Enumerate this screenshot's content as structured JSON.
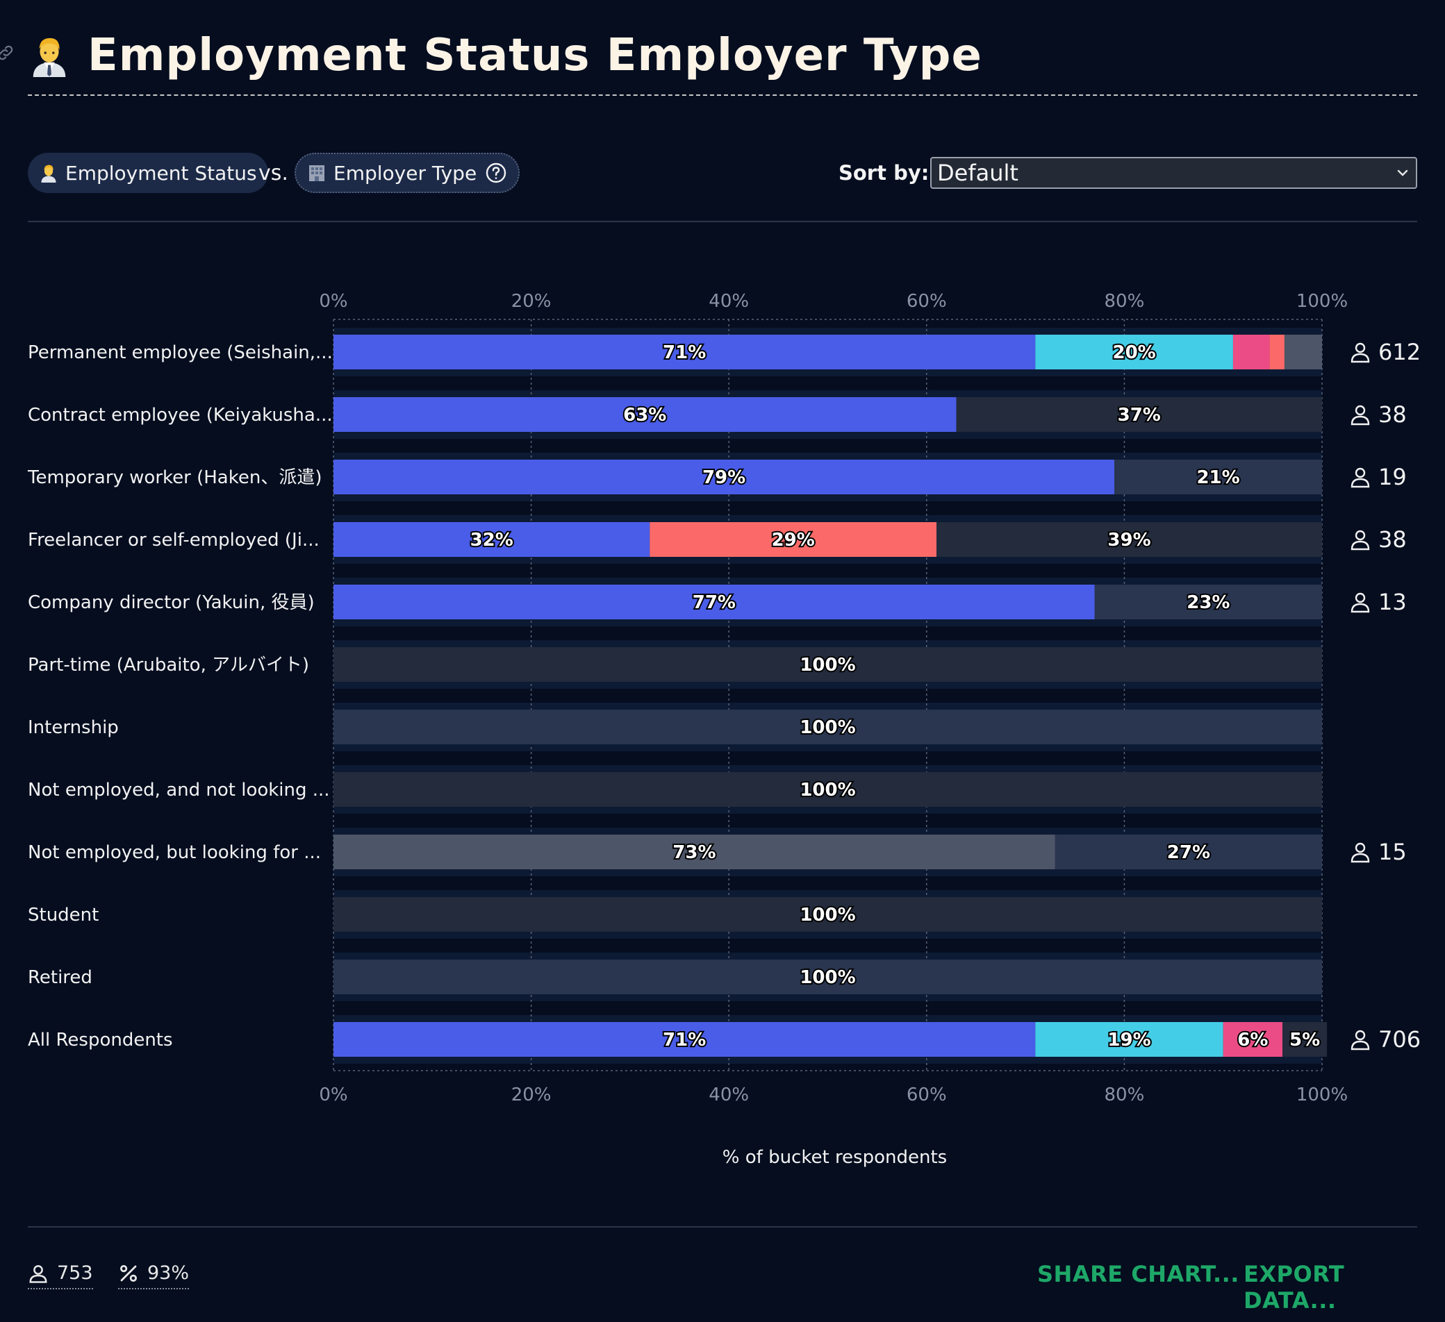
{
  "title": "Employment Status Employer Type",
  "controls": {
    "question1": "Employment Status",
    "vs": "vs.",
    "question2": "Employer Type",
    "sort_label": "Sort by:",
    "sort_value": "Default"
  },
  "footer": {
    "respondents": "753",
    "percent": "93%",
    "share": "SHARE CHART...",
    "export": "EXPORT DATA..."
  },
  "colors": {
    "background": "#050d1f",
    "blue": "#4a5de8",
    "cyan": "#44cde6",
    "pink": "#eb4c85",
    "coral": "#fb6a68",
    "gray": "#4d5568",
    "dark": "#232b3c",
    "darker": "#2a3650",
    "green": "#1ea868"
  },
  "chart_data": {
    "type": "bar",
    "orientation": "horizontal",
    "stacked": true,
    "xlabel": "% of bucket respondents",
    "xlim": [
      0,
      100
    ],
    "xticks": [
      "0%",
      "20%",
      "40%",
      "60%",
      "80%",
      "100%"
    ],
    "grid": true,
    "categories": [
      "Permanent employee (Seishain,...",
      "Contract employee (Keiyakusha...",
      "Temporary worker (Haken、派遣)",
      "Freelancer or self-employed (Ji...",
      "Company director (Yakuin, 役員)",
      "Part-time (Arubaito, アルバイト)",
      "Internship",
      "Not employed, and not looking ...",
      "Not employed, but looking for ...",
      "Student",
      "Retired",
      "All Respondents"
    ],
    "rows": [
      {
        "count": "612",
        "segments": [
          {
            "value": 71,
            "label": "71%",
            "color": "#4a5de8"
          },
          {
            "value": 20,
            "label": "20%",
            "color": "#44cde6"
          },
          {
            "value": 3.7,
            "label": "",
            "color": "#eb4c85"
          },
          {
            "value": 1.5,
            "label": "",
            "color": "#fb6a68"
          },
          {
            "value": 3.8,
            "label": "",
            "color": "#4d5568"
          }
        ]
      },
      {
        "count": "38",
        "segments": [
          {
            "value": 63,
            "label": "63%",
            "color": "#4a5de8"
          },
          {
            "value": 37,
            "label": "37%",
            "color": "#232b3c"
          }
        ]
      },
      {
        "count": "19",
        "segments": [
          {
            "value": 79,
            "label": "79%",
            "color": "#4a5de8"
          },
          {
            "value": 21,
            "label": "21%",
            "color": "#2a3650"
          }
        ]
      },
      {
        "count": "38",
        "segments": [
          {
            "value": 32,
            "label": "32%",
            "color": "#4a5de8"
          },
          {
            "value": 29,
            "label": "29%",
            "color": "#fb6a68"
          },
          {
            "value": 39,
            "label": "39%",
            "color": "#232b3c"
          }
        ]
      },
      {
        "count": "13",
        "segments": [
          {
            "value": 77,
            "label": "77%",
            "color": "#4a5de8"
          },
          {
            "value": 23,
            "label": "23%",
            "color": "#2a3650"
          }
        ]
      },
      {
        "count": "",
        "segments": [
          {
            "value": 100,
            "label": "100%",
            "color": "#232b3c"
          }
        ]
      },
      {
        "count": "",
        "segments": [
          {
            "value": 100,
            "label": "100%",
            "color": "#2a3650"
          }
        ]
      },
      {
        "count": "",
        "segments": [
          {
            "value": 100,
            "label": "100%",
            "color": "#232b3c"
          }
        ]
      },
      {
        "count": "15",
        "segments": [
          {
            "value": 73,
            "label": "73%",
            "color": "#4d5568"
          },
          {
            "value": 27,
            "label": "27%",
            "color": "#2a3650"
          }
        ]
      },
      {
        "count": "",
        "segments": [
          {
            "value": 100,
            "label": "100%",
            "color": "#232b3c"
          }
        ]
      },
      {
        "count": "",
        "segments": [
          {
            "value": 100,
            "label": "100%",
            "color": "#2a3650"
          }
        ]
      },
      {
        "count": "706",
        "segments": [
          {
            "value": 71,
            "label": "71%",
            "color": "#4a5de8"
          },
          {
            "value": 19,
            "label": "19%",
            "color": "#44cde6"
          },
          {
            "value": 6,
            "label": "6%",
            "color": "#eb4c85"
          },
          {
            "value": 5,
            "label": "5%",
            "color": "#232b3c"
          }
        ]
      }
    ]
  }
}
